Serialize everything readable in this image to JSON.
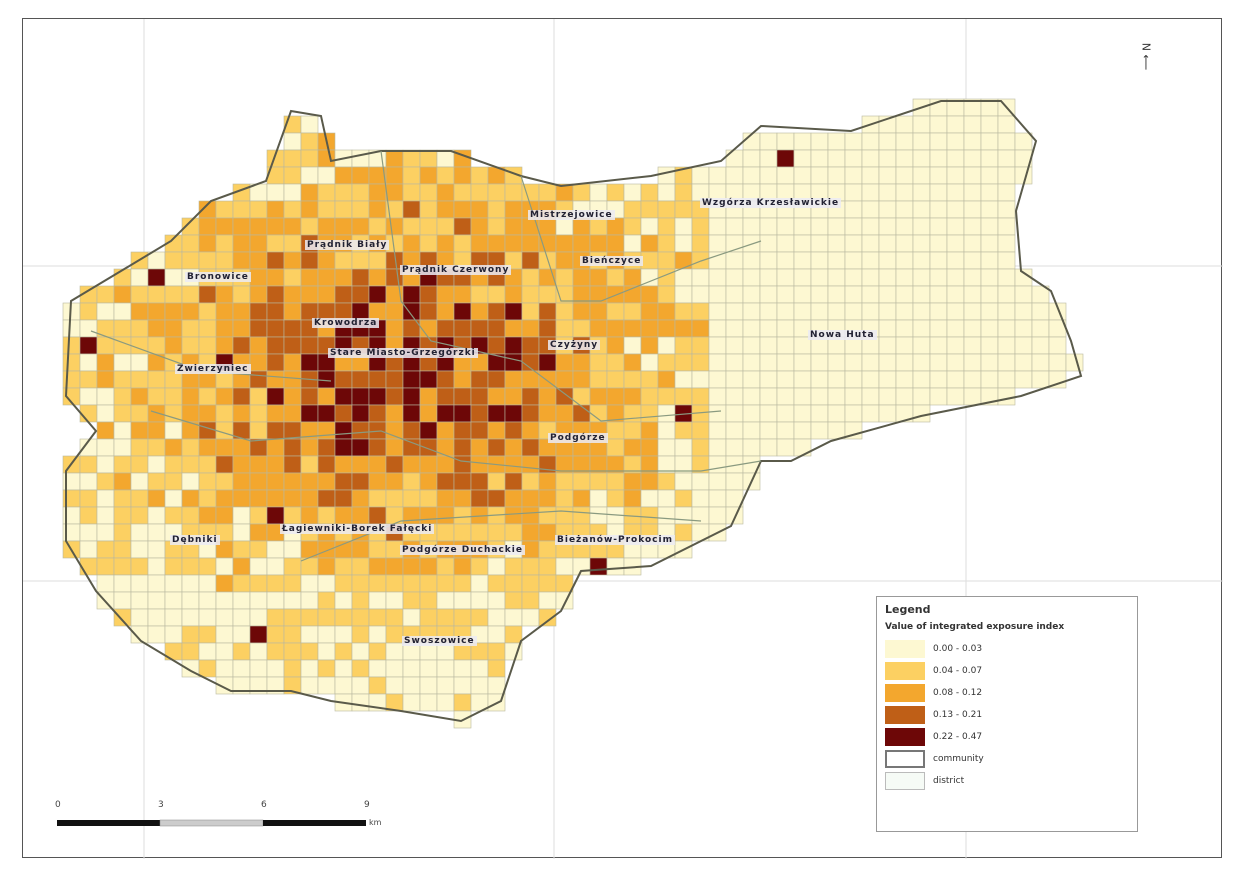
{
  "map": {
    "colors": {
      "boundary": "#5a5a4a",
      "grid": "#b8b8a0",
      "district": "#8a9a80"
    },
    "districts": [
      "Bronowice",
      "Prądnik Biały",
      "Prądnik Czerwony",
      "Mistrzejowice",
      "Bieńczyce",
      "Wzgórza Krzesławickie",
      "Krowodrza",
      "Stare Miasto-Grzegórzki",
      "Zwierzyniec",
      "Czyżyny",
      "Nowa Huta",
      "Podgórze",
      "Dębniki",
      "Łagiewniki-Borek Fałęcki",
      "Podgórze Duchackie",
      "Bieżanów-Prokocim",
      "Swoszowice"
    ]
  },
  "legend": {
    "title": "Legend",
    "subtitle": "Value of integrated exposure index",
    "classes": [
      {
        "label": "0.00 - 0.03",
        "color": "#fdf8d2"
      },
      {
        "label": "0.04 - 0.07",
        "color": "#fcd062"
      },
      {
        "label": "0.08 - 0.12",
        "color": "#f3a72e"
      },
      {
        "label": "0.13 - 0.21",
        "color": "#bf5f17"
      },
      {
        "label": "0.22 - 0.47",
        "color": "#6d0707"
      }
    ],
    "community_label": "community",
    "district_label": "district"
  },
  "scale_bar": {
    "ticks": [
      "0",
      "3",
      "6",
      "9"
    ],
    "unit": "km"
  },
  "north_arrow": {
    "label": "N",
    "icon": "north-arrow-icon"
  }
}
